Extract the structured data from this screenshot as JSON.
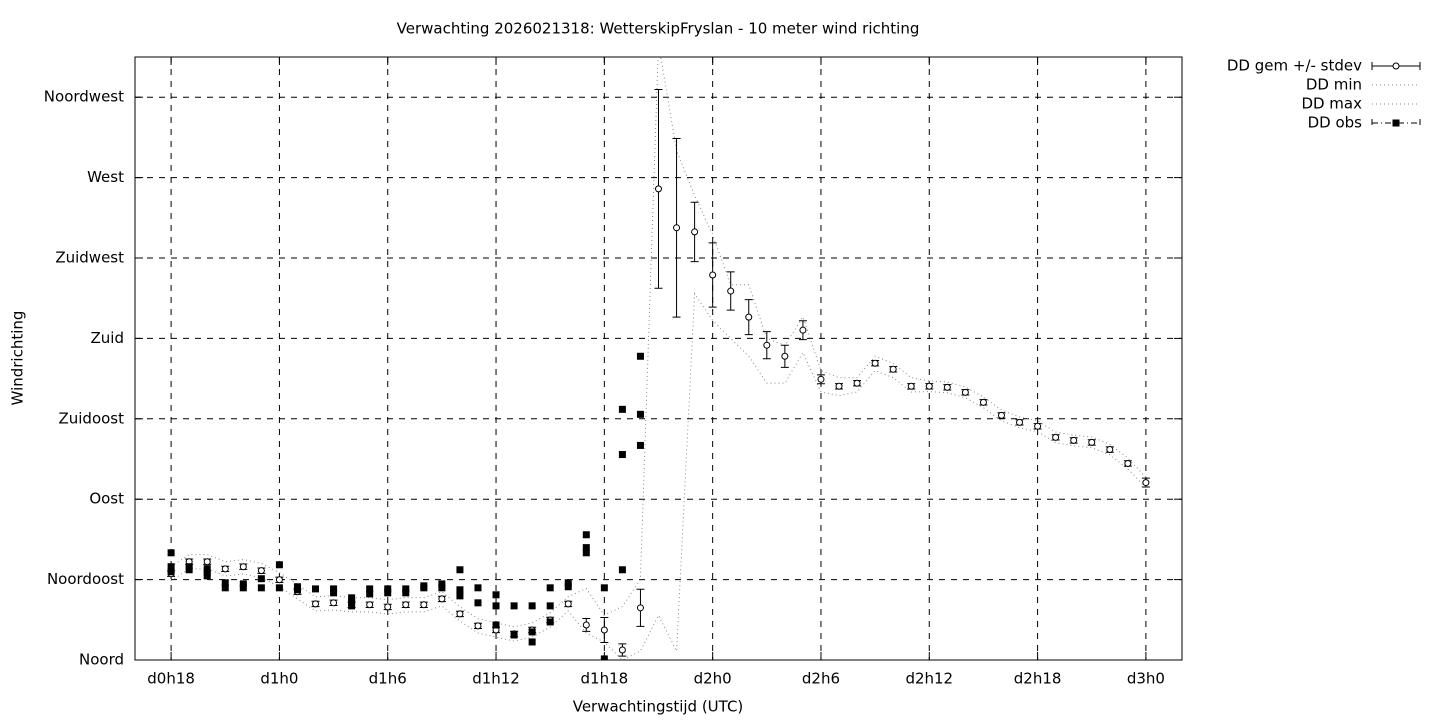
{
  "chart_data": {
    "type": "errorbar-line",
    "title": "Verwachting 2026021318: WetterskipFryslan - 10 meter wind richting",
    "x_label": "Verwachtingstijd (UTC)",
    "y_label": "Windrichting",
    "xlim": [
      16,
      74
    ],
    "ylim": [
      0,
      337.5
    ],
    "xticks": [
      {
        "value": 18,
        "label": "d0h18"
      },
      {
        "value": 24,
        "label": "d1h0"
      },
      {
        "value": 30,
        "label": "d1h6"
      },
      {
        "value": 36,
        "label": "d1h12"
      },
      {
        "value": 42,
        "label": "d1h18"
      },
      {
        "value": 48,
        "label": "d2h0"
      },
      {
        "value": 54,
        "label": "d2h6"
      },
      {
        "value": 60,
        "label": "d2h12"
      },
      {
        "value": 66,
        "label": "d2h18"
      },
      {
        "value": 72,
        "label": "d3h0"
      }
    ],
    "yticks": [
      {
        "value": 0,
        "label": "Noord"
      },
      {
        "value": 45,
        "label": "Noordoost"
      },
      {
        "value": 90,
        "label": "Oost"
      },
      {
        "value": 135,
        "label": "Zuidoost"
      },
      {
        "value": 180,
        "label": "Zuid"
      },
      {
        "value": 225,
        "label": "Zuidwest"
      },
      {
        "value": 270,
        "label": "West"
      },
      {
        "value": 315,
        "label": "Noordwest"
      }
    ],
    "grid": true,
    "legend": "outside-top-right",
    "x": [
      18,
      19,
      20,
      21,
      22,
      23,
      24,
      25,
      26,
      27,
      28,
      29,
      30,
      31,
      32,
      33,
      34,
      35,
      36,
      37,
      38,
      39,
      40,
      41,
      42,
      43,
      44,
      45,
      46,
      47,
      48,
      49,
      50,
      51,
      52,
      53,
      54,
      55,
      56,
      57,
      58,
      59,
      60,
      61,
      62,
      63,
      64,
      65,
      66,
      67,
      68,
      69,
      70,
      71,
      72
    ],
    "series": [
      {
        "name": "DD gem +/- stdev",
        "color": "#000000",
        "values": [
          48.3,
          55,
          55,
          51,
          52.2,
          50,
          44.9,
          38.2,
          31.4,
          32,
          30.9,
          30.9,
          29.7,
          30.9,
          30.9,
          34.2,
          25.8,
          19.1,
          16.8,
          14.6,
          16.8,
          22.4,
          31.4,
          19.6,
          16.8,
          5.6,
          29.2,
          263.7,
          241.9,
          239.6,
          215.5,
          206.5,
          191.9,
          176.2,
          170,
          184.6,
          157.1,
          153.2,
          154.9,
          166.1,
          162.7,
          153.2,
          153.2,
          152.6,
          149.8,
          144.2,
          136.9,
          133,
          130.8,
          124.6,
          122.9,
          121.8,
          117.8,
          110,
          99.3
        ],
        "errors": [
          1.5,
          1.5,
          1.5,
          1.5,
          1.5,
          1.5,
          1.5,
          1.5,
          1.5,
          1.5,
          1.5,
          1.5,
          1.5,
          1.5,
          1.5,
          1.5,
          1.5,
          1.5,
          1.5,
          1.5,
          1.5,
          1.5,
          1.5,
          3.6,
          7,
          3.4,
          10.4,
          55.6,
          50,
          16.6,
          18,
          10.7,
          9.8,
          7.6,
          6.2,
          5.3,
          2.5,
          1.5,
          1.5,
          1.5,
          1.5,
          1.5,
          1.5,
          1.5,
          1.5,
          1.5,
          1.5,
          1.5,
          1.5,
          1.5,
          1.5,
          1.5,
          1.5,
          1.5,
          2.5
        ]
      },
      {
        "name": "DD min",
        "color": "#888888",
        "values": [
          44.3,
          51,
          51,
          47,
          48.2,
          46,
          40.9,
          34.2,
          27.4,
          28,
          26.9,
          26.9,
          25.7,
          26.9,
          26.9,
          30.2,
          21.8,
          15.1,
          12.8,
          10.6,
          12.8,
          18.4,
          27.4,
          15,
          10,
          0,
          5,
          25,
          5,
          205,
          190,
          180,
          170,
          155,
          155,
          172,
          150,
          148,
          150,
          162,
          158,
          150,
          150.2,
          149.6,
          146.8,
          141.2,
          133.9,
          130,
          127.8,
          121.6,
          119.9,
          118.8,
          114.8,
          107,
          96.3
        ]
      },
      {
        "name": "DD max",
        "color": "#888888",
        "values": [
          52.3,
          59,
          59,
          55,
          56.2,
          54,
          48.9,
          42.2,
          35.4,
          36,
          34.9,
          34.9,
          33.7,
          34.9,
          34.9,
          38.2,
          29.8,
          23.1,
          20.8,
          18.6,
          20.8,
          26.4,
          35.4,
          40,
          25,
          30,
          45,
          345,
          285,
          260,
          238,
          210,
          210,
          180,
          176,
          192,
          162,
          158,
          158,
          170,
          166,
          158,
          156.2,
          155.6,
          152.8,
          147.2,
          139.9,
          136,
          133.8,
          127.6,
          125.9,
          124.8,
          120.8,
          113,
          102.3
        ]
      },
      {
        "name": "DD obs",
        "color": "#000000",
        "x": [
          18,
          18,
          18,
          19,
          19,
          20,
          20,
          20,
          21,
          21,
          22,
          22,
          23,
          23,
          24,
          24,
          25,
          25,
          26,
          27,
          27,
          28,
          28,
          28,
          29,
          29,
          30,
          30,
          31,
          31,
          32,
          32,
          33,
          33,
          34,
          34,
          34,
          35,
          35,
          36,
          36,
          36,
          37,
          37,
          38,
          38,
          38,
          39,
          39,
          39,
          40,
          40,
          41,
          41,
          41,
          42,
          42,
          43,
          43,
          43,
          44,
          44,
          44
        ],
        "values": [
          60,
          52.2,
          49.4,
          52.2,
          50.5,
          51.1,
          48.8,
          47.1,
          43.2,
          40.4,
          42.6,
          40.4,
          45.5,
          40.4,
          53.3,
          40.4,
          41,
          39.3,
          39.8,
          39.8,
          37.6,
          34.8,
          32.5,
          30.3,
          39.8,
          37,
          39.8,
          37.6,
          39.8,
          37.6,
          41.5,
          40.4,
          42.6,
          40.4,
          50.5,
          39.3,
          35.9,
          40.4,
          32,
          36.5,
          30.3,
          19.6,
          30.3,
          14,
          30.3,
          15.7,
          10.1,
          40.4,
          30.3,
          21.3,
          43.2,
          41,
          70.1,
          62.9,
          60,
          40.4,
          0.6,
          140.3,
          115,
          50.5,
          170,
          137.5,
          120.1
        ]
      }
    ]
  }
}
